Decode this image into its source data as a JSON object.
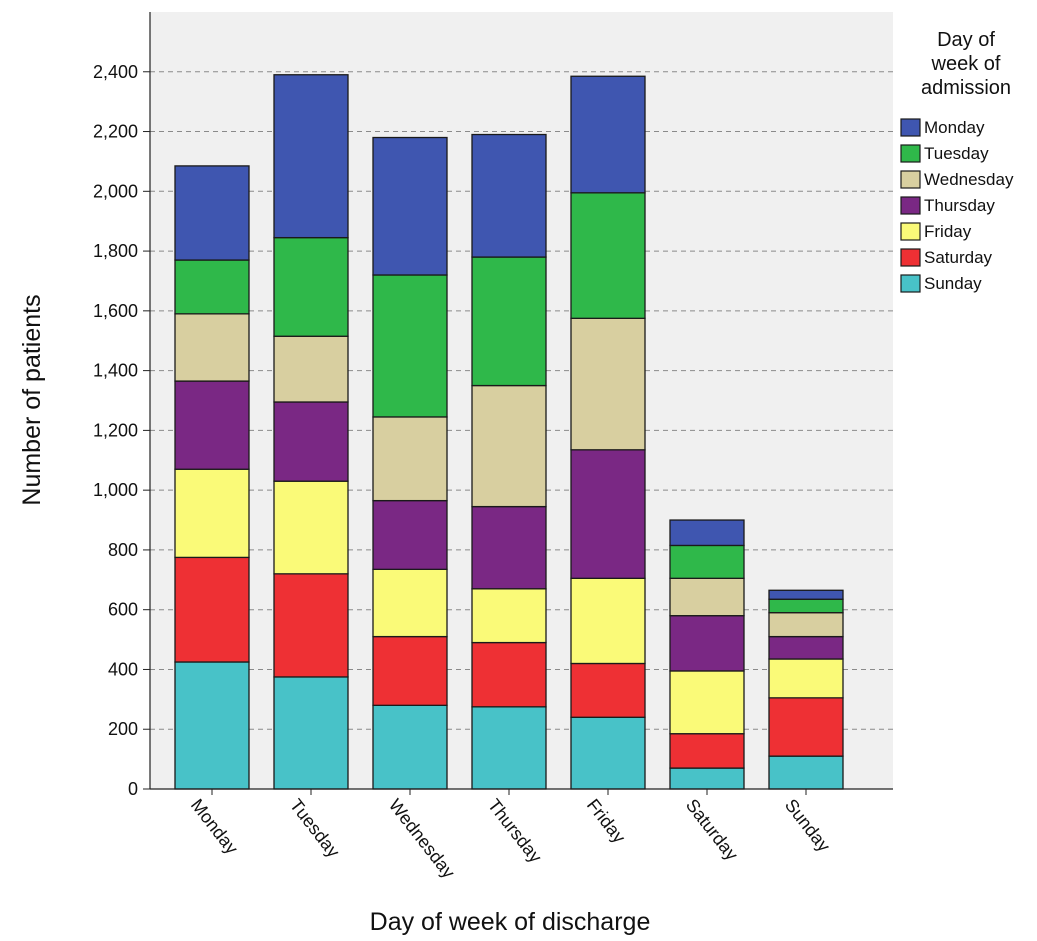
{
  "chart_data": {
    "type": "bar",
    "stacked": true,
    "title": "",
    "xlabel": "Day of week of discharge",
    "ylabel": "Number of patients",
    "ylim": [
      0,
      2600
    ],
    "yticks": [
      0,
      200,
      400,
      600,
      800,
      1000,
      1200,
      1400,
      1600,
      1800,
      2000,
      2200,
      2400
    ],
    "ytick_labels": [
      "0",
      "200",
      "400",
      "600",
      "800",
      "1,000",
      "1,200",
      "1,400",
      "1,600",
      "1,800",
      "2,000",
      "2,200",
      "2,400"
    ],
    "grid": "horizontal dashed",
    "legend_title": [
      "Day of",
      "week of",
      "admission"
    ],
    "legend_position": "right",
    "categories": [
      "Monday",
      "Tuesday",
      "Wednesday",
      "Thursday",
      "Friday",
      "Saturday",
      "Sunday"
    ],
    "series": [
      {
        "name": "Sunday",
        "color": "#48c2c8",
        "values": [
          425,
          375,
          280,
          275,
          240,
          70,
          110
        ]
      },
      {
        "name": "Saturday",
        "color": "#ee3034",
        "values": [
          350,
          345,
          230,
          215,
          180,
          115,
          195
        ]
      },
      {
        "name": "Friday",
        "color": "#fafa78",
        "values": [
          295,
          310,
          225,
          180,
          285,
          210,
          130
        ]
      },
      {
        "name": "Thursday",
        "color": "#7a2884",
        "values": [
          295,
          265,
          230,
          275,
          430,
          185,
          75
        ]
      },
      {
        "name": "Wednesday",
        "color": "#d8cfa0",
        "values": [
          225,
          220,
          280,
          405,
          440,
          125,
          80
        ]
      },
      {
        "name": "Tuesday",
        "color": "#2fb84a",
        "values": [
          180,
          330,
          475,
          430,
          420,
          110,
          45
        ]
      },
      {
        "name": "Monday",
        "color": "#3f56b0",
        "values": [
          315,
          545,
          460,
          410,
          390,
          85,
          30
        ]
      }
    ]
  }
}
